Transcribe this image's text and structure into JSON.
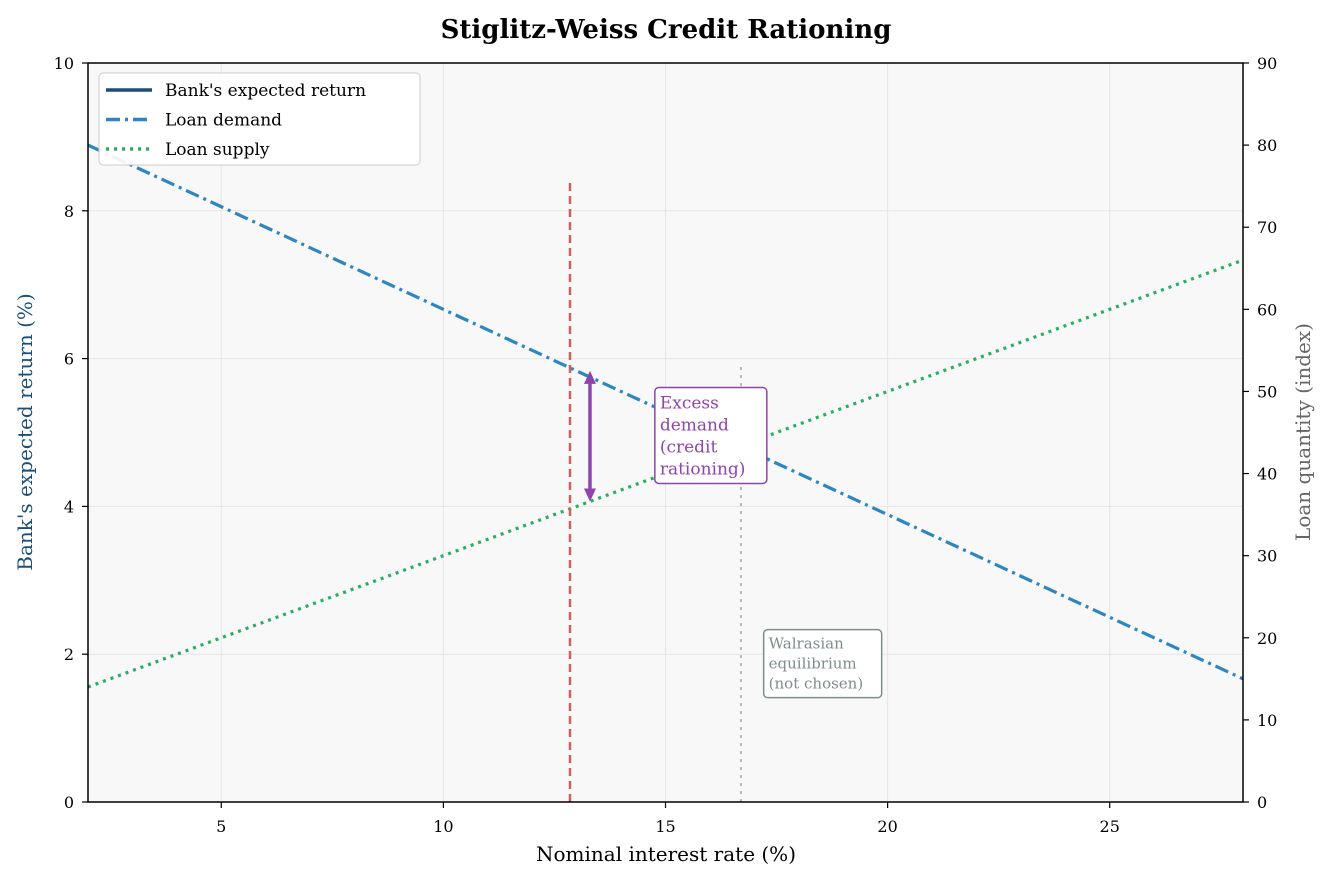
{
  "chart_data": {
    "type": "line",
    "title": "Stiglitz-Weiss Credit Rationing",
    "xlabel": "Nominal interest rate (%)",
    "ylabel_left": "Bank's expected return (%)",
    "ylabel_right": "Loan quantity (index)",
    "xlim": [
      2,
      28
    ],
    "ylim_left": [
      0,
      10
    ],
    "ylim_right": [
      0,
      90
    ],
    "x_ticks": [
      5,
      10,
      15,
      20,
      25
    ],
    "y_left_ticks": [
      0,
      2,
      4,
      6,
      8,
      10
    ],
    "y_right_ticks": [
      0,
      10,
      20,
      30,
      40,
      50,
      60,
      70,
      80,
      90
    ],
    "grid": true,
    "legend_position": "top-left",
    "series": [
      {
        "name": "Bank's expected return",
        "axis": "left",
        "style": "solid",
        "color": "#1a4f7a",
        "x": [],
        "y": []
      },
      {
        "name": "Loan demand",
        "axis": "right",
        "style": "dashdot",
        "color": "#2e86c1",
        "x": [
          2,
          28
        ],
        "y": [
          80,
          15
        ]
      },
      {
        "name": "Loan supply",
        "axis": "right",
        "style": "dotted",
        "color": "#27ae60",
        "x": [
          2,
          28
        ],
        "y": [
          14,
          66
        ]
      }
    ],
    "reference_lines": [
      {
        "x": 12.85,
        "ymax_right": 76,
        "style": "dashed",
        "color": "#cd6060"
      },
      {
        "x": 16.7,
        "ymax_right": 53.5,
        "style": "dotted",
        "color": "#b8b8b8"
      }
    ],
    "gap_arrow": {
      "x": 13.3,
      "from_right": 36.6,
      "to_right": 52.5,
      "color": "#8e44ad"
    },
    "annotations": [
      {
        "lines": [
          "Excess",
          "demand",
          "(credit",
          "rationing)"
        ],
        "color": "#8e44ad",
        "x": 14.85,
        "y_right": 50
      },
      {
        "lines": [
          "Walrasian",
          "equilibrium",
          "(not chosen)"
        ],
        "color": "#7f8c8d",
        "x": 17.3,
        "y_right": 20.5
      }
    ],
    "left_label_color": "#1a4f7a",
    "right_label_color": "#666666",
    "plot_background": "#f8f8f8"
  }
}
